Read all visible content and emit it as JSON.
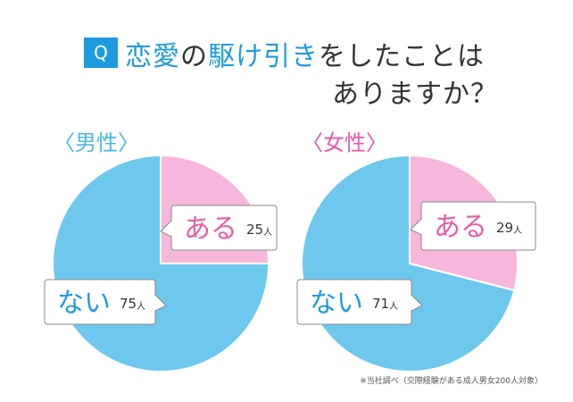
{
  "title": {
    "badge": "Q",
    "line1_parts": [
      {
        "text": "恋愛",
        "hl": true
      },
      {
        "text": "の",
        "hl": false
      },
      {
        "text": "駆け引き",
        "hl": true
      },
      {
        "text": "をしたことは",
        "hl": false
      }
    ],
    "line2": "ありますか？"
  },
  "colors": {
    "accent": "#1e9be0",
    "aru": "#f7b6dc",
    "nai": "#6ec8ee",
    "female_label": "#e95ba6",
    "male_label": "#4db8e6"
  },
  "chart_data": [
    {
      "type": "pie",
      "title": "〈男性〉",
      "unit": "人",
      "slices": [
        {
          "label": "ある",
          "value": 25
        },
        {
          "label": "ない",
          "value": 75
        }
      ]
    },
    {
      "type": "pie",
      "title": "〈女性〉",
      "unit": "人",
      "slices": [
        {
          "label": "ある",
          "value": 29
        },
        {
          "label": "ない",
          "value": 71
        }
      ]
    }
  ],
  "footnote": "※当社調べ（交際経験がある成人男女200人対象）"
}
